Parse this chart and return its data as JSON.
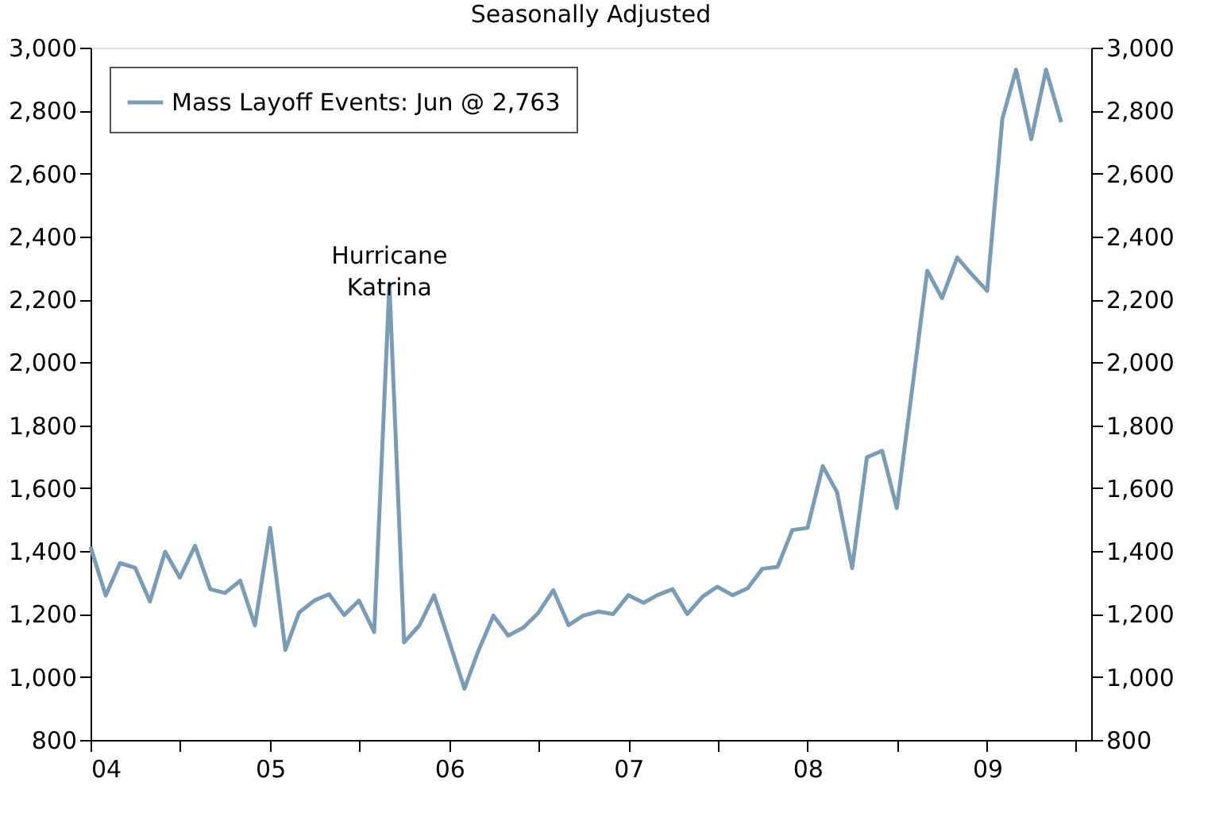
{
  "chart_data": {
    "type": "line",
    "title": "Seasonally Adjusted",
    "x": [
      "2004-01",
      "2004-02",
      "2004-03",
      "2004-04",
      "2004-05",
      "2004-06",
      "2004-07",
      "2004-08",
      "2004-09",
      "2004-10",
      "2004-11",
      "2004-12",
      "2005-01",
      "2005-02",
      "2005-03",
      "2005-04",
      "2005-05",
      "2005-06",
      "2005-07",
      "2005-08",
      "2005-09",
      "2005-10",
      "2005-11",
      "2005-12",
      "2006-01",
      "2006-02",
      "2006-03",
      "2006-04",
      "2006-05",
      "2006-06",
      "2006-07",
      "2006-08",
      "2006-09",
      "2006-10",
      "2006-11",
      "2006-12",
      "2007-01",
      "2007-02",
      "2007-03",
      "2007-04",
      "2007-05",
      "2007-06",
      "2007-07",
      "2007-08",
      "2007-09",
      "2007-10",
      "2007-11",
      "2007-12",
      "2008-01",
      "2008-02",
      "2008-03",
      "2008-04",
      "2008-05",
      "2008-06",
      "2008-07",
      "2008-08",
      "2008-09",
      "2008-10",
      "2008-11",
      "2008-12",
      "2009-01",
      "2009-02",
      "2009-03",
      "2009-04",
      "2009-05",
      "2009-06"
    ],
    "series": [
      {
        "name": "Mass Layoff Events: Jun @ 2,763",
        "color": "#7a9db5",
        "values": [
          1414,
          1259,
          1362,
          1347,
          1240,
          1398,
          1316,
          1417,
          1279,
          1267,
          1306,
          1164,
          1474,
          1086,
          1205,
          1243,
          1263,
          1197,
          1243,
          1143,
          2249,
          1110,
          1164,
          1260,
          1113,
          963,
          1082,
          1195,
          1132,
          1157,
          1203,
          1276,
          1165,
          1195,
          1208,
          1200,
          1260,
          1236,
          1260,
          1279,
          1200,
          1255,
          1287,
          1260,
          1282,
          1344,
          1350,
          1467,
          1474,
          1670,
          1588,
          1346,
          1698,
          1719,
          1537,
          1912,
          2291,
          2204,
          2333,
          2279,
          2227,
          2774,
          2930,
          2709,
          2930,
          2763
        ]
      }
    ],
    "xlim": [
      "2004-01",
      "2009-08"
    ],
    "xticks": [
      {
        "value": "2004-01",
        "label": "04"
      },
      {
        "value": "2004-07",
        "label": null
      },
      {
        "value": "2005-01",
        "label": "05"
      },
      {
        "value": "2005-07",
        "label": null
      },
      {
        "value": "2006-01",
        "label": "06"
      },
      {
        "value": "2006-07",
        "label": null
      },
      {
        "value": "2007-01",
        "label": "07"
      },
      {
        "value": "2007-07",
        "label": null
      },
      {
        "value": "2008-01",
        "label": "08"
      },
      {
        "value": "2008-07",
        "label": null
      },
      {
        "value": "2009-01",
        "label": "09"
      },
      {
        "value": "2009-07",
        "label": null
      }
    ],
    "ylim": [
      800,
      3000
    ],
    "yticks": [
      {
        "value": 800,
        "label": "800"
      },
      {
        "value": 1000,
        "label": "1,000"
      },
      {
        "value": 1200,
        "label": "1,200"
      },
      {
        "value": 1400,
        "label": "1,400"
      },
      {
        "value": 1600,
        "label": "1,600"
      },
      {
        "value": 1800,
        "label": "1,800"
      },
      {
        "value": 2000,
        "label": "2,000"
      },
      {
        "value": 2200,
        "label": "2,200"
      },
      {
        "value": 2400,
        "label": "2,400"
      },
      {
        "value": 2600,
        "label": "2,600"
      },
      {
        "value": 2800,
        "label": "2,800"
      },
      {
        "value": 3000,
        "label": "3,000"
      }
    ],
    "y2lim": [
      800,
      3000
    ],
    "y2ticks": [
      {
        "value": 800,
        "label": "800"
      },
      {
        "value": 1000,
        "label": "1,000"
      },
      {
        "value": 1200,
        "label": "1,200"
      },
      {
        "value": 1400,
        "label": "1,400"
      },
      {
        "value": 1600,
        "label": "1,600"
      },
      {
        "value": 1800,
        "label": "1,800"
      },
      {
        "value": 2000,
        "label": "2,000"
      },
      {
        "value": 2200,
        "label": "2,200"
      },
      {
        "value": 2400,
        "label": "2,400"
      },
      {
        "value": 2600,
        "label": "2,600"
      },
      {
        "value": 2800,
        "label": "2,800"
      },
      {
        "value": 3000,
        "label": "3,000"
      }
    ],
    "annotations": [
      {
        "text": "Hurricane\nKatrina",
        "x": "2005-09",
        "y": 2249
      }
    ],
    "legend": "top left",
    "grid": false,
    "marker": "none",
    "line_style": "solid"
  }
}
